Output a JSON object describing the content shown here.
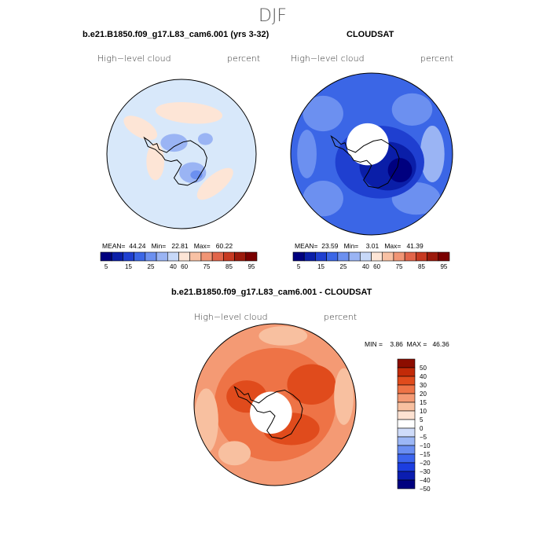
{
  "page": {
    "title": "DJF"
  },
  "panels": {
    "model": {
      "title": "b.e21.B1850.f09_g17.L83_cam6.001 (yrs 3-32)",
      "left_label": "High−level cloud",
      "right_label": "percent",
      "stats": "MEAN=  44.24   Min=   22.81   Max=   60.22"
    },
    "obs": {
      "title": "CLOUDSAT",
      "left_label": "High−level cloud",
      "right_label": "percent",
      "stats": "MEAN=  23.59   Min=    3.01   Max=   41.39"
    },
    "diff": {
      "title": "b.e21.B1850.f09_g17.L83_cam6.001 - CLOUDSAT",
      "left_label": "High−level cloud",
      "right_label": "percent",
      "stats": "MIN =    3.86  MAX =   46.36"
    }
  },
  "chart_data": [
    {
      "type": "heatmap",
      "projection": "south polar stereographic",
      "title": "b.e21.B1850.f09_g17.L83_cam6.001 (yrs 3-32)",
      "variable": "High-level cloud",
      "units": "percent",
      "mean": 44.24,
      "min": 22.81,
      "max": 60.22,
      "colorbar": {
        "levels": [
          5,
          15,
          25,
          40,
          60,
          75,
          85,
          95
        ],
        "colors": [
          "#00007f",
          "#0a1ea8",
          "#1f3fd0",
          "#3b66e6",
          "#6c90f0",
          "#9ab4f4",
          "#c7d8f8",
          "#fde5d6",
          "#f8c1a4",
          "#f19575",
          "#e2654a",
          "#c73a22",
          "#9c1a0c",
          "#7a0000"
        ]
      }
    },
    {
      "type": "heatmap",
      "projection": "south polar stereographic",
      "title": "CLOUDSAT",
      "variable": "High-level cloud",
      "units": "percent",
      "mean": 23.59,
      "min": 3.01,
      "max": 41.39,
      "colorbar": {
        "levels": [
          5,
          15,
          25,
          40,
          60,
          75,
          85,
          95
        ],
        "colors": [
          "#00007f",
          "#0a1ea8",
          "#1f3fd0",
          "#3b66e6",
          "#6c90f0",
          "#9ab4f4",
          "#c7d8f8",
          "#fde5d6",
          "#f8c1a4",
          "#f19575",
          "#e2654a",
          "#c73a22",
          "#9c1a0c",
          "#7a0000"
        ]
      }
    },
    {
      "type": "heatmap",
      "projection": "south polar stereographic",
      "title": "b.e21.B1850.f09_g17.L83_cam6.001 - CLOUDSAT",
      "variable": "High-level cloud",
      "units": "percent",
      "min": 3.86,
      "max": 46.36,
      "colorbar": {
        "levels": [
          -50,
          -40,
          -30,
          -20,
          -15,
          -10,
          -5,
          0,
          5,
          10,
          15,
          20,
          30,
          40,
          50
        ],
        "colors": [
          "#00007f",
          "#0b1db0",
          "#1c3ee0",
          "#3b64ee",
          "#6a8ef2",
          "#9cb7f6",
          "#cfdcfa",
          "#ffffff",
          "#fde2d2",
          "#f8c0a0",
          "#f49a74",
          "#ee7346",
          "#e04b1c",
          "#c22a08",
          "#8c0d00"
        ]
      }
    }
  ]
}
